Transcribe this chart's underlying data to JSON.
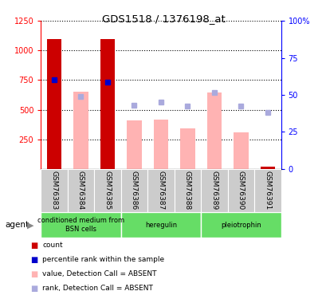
{
  "title": "GDS1518 / 1376198_at",
  "samples": [
    "GSM76383",
    "GSM76384",
    "GSM76385",
    "GSM76386",
    "GSM76387",
    "GSM76388",
    "GSM76389",
    "GSM76390",
    "GSM76391"
  ],
  "count_values": [
    1100,
    null,
    1100,
    null,
    null,
    null,
    null,
    null,
    20
  ],
  "rank_values": [
    750,
    null,
    730,
    null,
    null,
    null,
    null,
    null,
    null
  ],
  "absent_value": [
    null,
    650,
    null,
    410,
    415,
    345,
    645,
    310,
    null
  ],
  "absent_rank": [
    null,
    615,
    null,
    540,
    565,
    530,
    645,
    530,
    480
  ],
  "ylim_left": [
    0,
    1250
  ],
  "ylim_right": [
    0,
    100
  ],
  "yticks_left": [
    250,
    500,
    750,
    1000,
    1250
  ],
  "yticks_right": [
    0,
    25,
    50,
    75,
    100
  ],
  "color_red": "#cc0000",
  "color_blue": "#0000cc",
  "color_pink": "#ffb3b3",
  "color_lavender": "#aaaadd",
  "legend_items": [
    {
      "label": "count",
      "color": "#cc0000"
    },
    {
      "label": "percentile rank within the sample",
      "color": "#0000cc"
    },
    {
      "label": "value, Detection Call = ABSENT",
      "color": "#ffb3b3"
    },
    {
      "label": "rank, Detection Call = ABSENT",
      "color": "#aaaadd"
    }
  ],
  "group_data": [
    {
      "label": "conditioned medium from\nBSN cells",
      "start": 0,
      "end": 3
    },
    {
      "label": "heregulin",
      "start": 3,
      "end": 6
    },
    {
      "label": "pleiotrophin",
      "start": 6,
      "end": 9
    }
  ],
  "group_color": "#66dd66",
  "sample_bg_color": "#cccccc",
  "bar_width": 0.55
}
